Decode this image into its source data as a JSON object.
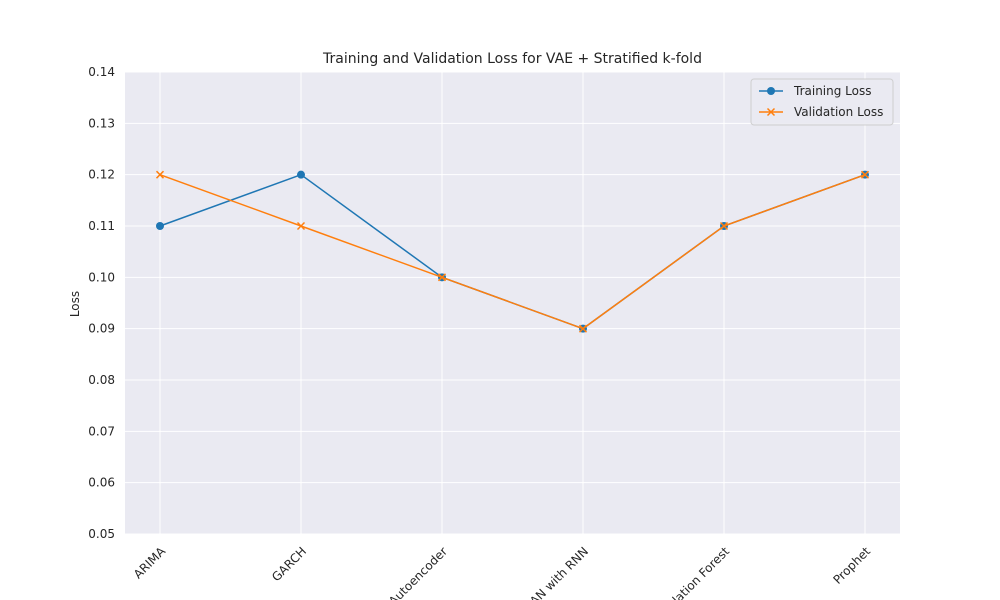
{
  "chart_data": {
    "type": "line",
    "title": "Training and Validation Loss for VAE + Stratified k-fold",
    "xlabel": "",
    "ylabel": "Loss",
    "categories": [
      "ARIMA",
      "GARCH",
      "Autoencoder",
      "GAN with RNN",
      "Isolation Forest",
      "Prophet"
    ],
    "ylim": [
      0.05,
      0.14
    ],
    "yticks": [
      "0.05",
      "0.06",
      "0.07",
      "0.08",
      "0.09",
      "0.10",
      "0.11",
      "0.12",
      "0.13",
      "0.14"
    ],
    "grid": true,
    "legend_position": "top-right",
    "series": [
      {
        "name": "Training Loss",
        "marker": "circle",
        "color": "#1f77b4",
        "values": [
          0.11,
          0.12,
          0.1,
          0.09,
          0.11,
          0.12
        ]
      },
      {
        "name": "Validation Loss",
        "marker": "x",
        "color": "#ff7f0e",
        "values": [
          0.12,
          0.11,
          0.1,
          0.09,
          0.11,
          0.12
        ]
      }
    ],
    "background": "#eaeaf2"
  }
}
